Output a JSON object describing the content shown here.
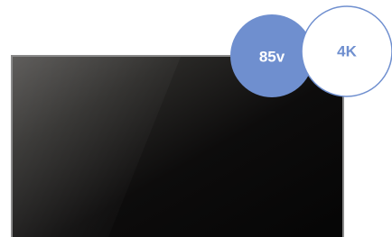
{
  "badges": {
    "size": "85v",
    "resolution": "4K"
  }
}
